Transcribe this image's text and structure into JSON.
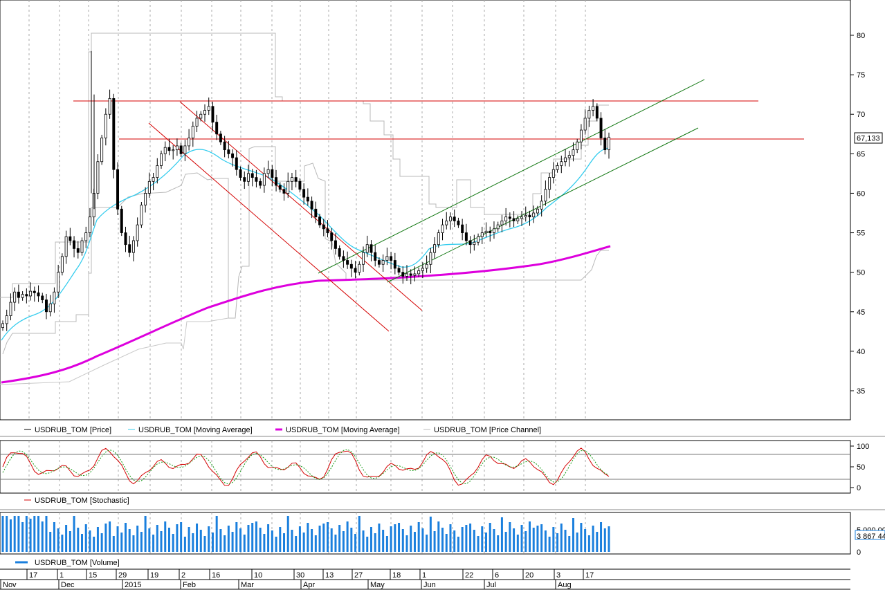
{
  "chart_data": {
    "type": "candlestick",
    "instrument": "USDRUB_TOM",
    "price_axis": {
      "ticks": [
        35,
        40,
        45,
        50,
        55,
        60,
        65,
        70,
        75,
        80
      ],
      "current_value_label": "67,133",
      "ylim": [
        31,
        84
      ]
    },
    "legend_price": [
      {
        "name": "USDRUB_TOM [Price]",
        "color": "#000000"
      },
      {
        "name": "USDRUB_TOM [Moving Average]",
        "color": "#33ccee"
      },
      {
        "name": "USDRUB_TOM [Moving Average]",
        "color": "#dd00dd"
      },
      {
        "name": "USDRUB_TOM [Price Channel]",
        "color": "#bbbbbb"
      }
    ],
    "horizontal_levels": [
      71.7,
      66.8
    ],
    "stochastic": {
      "legend": "USDRUB_TOM [Stochastic]",
      "ticks": [
        0,
        50,
        100
      ],
      "levels": [
        20,
        80
      ]
    },
    "volume": {
      "legend": "USDRUB_TOM [Volume]",
      "ticks": [
        "0",
        "5 000 00",
        "3 867 44"
      ]
    },
    "date_axis": {
      "days": [
        "17",
        "1",
        "15",
        "29",
        "19",
        "2",
        "16",
        "10",
        "30",
        "13",
        "27",
        "18",
        "1",
        "22",
        "6",
        "20",
        "3",
        "17"
      ],
      "months": [
        "Nov",
        "Dec",
        "2015",
        "Feb",
        "Mar",
        "Apr",
        "May",
        "Jun",
        "Jul",
        "Aug"
      ]
    },
    "closes": [
      43.5,
      44.5,
      46.2,
      47.5,
      46.8,
      47.2,
      47.0,
      47.6,
      47.4,
      47.0,
      46.5,
      45.0,
      46.0,
      47.5,
      50.0,
      52.0,
      54.5,
      54.0,
      53.0,
      52.5,
      54.0,
      55.0,
      57.0,
      60.0,
      64.0,
      67.0,
      70.0,
      72.0,
      63.0,
      58.0,
      55.0,
      53.5,
      52.5,
      54.0,
      56.0,
      58.5,
      60.0,
      61.5,
      62.0,
      63.5,
      65.0,
      65.8,
      65.4,
      65.5,
      66.0,
      65.0,
      66.0,
      67.0,
      68.5,
      69.5,
      70.0,
      70.5,
      71.0,
      69.0,
      67.5,
      66.5,
      65.5,
      65.0,
      64.5,
      63.0,
      62.0,
      61.5,
      62.5,
      62.0,
      61.5,
      61.0,
      62.5,
      63.0,
      62.0,
      61.0,
      60.5,
      60.0,
      61.5,
      62.0,
      61.5,
      60.5,
      59.5,
      59.0,
      58.0,
      57.0,
      56.0,
      55.5,
      55.0,
      54.0,
      53.0,
      52.0,
      51.5,
      51.0,
      50.5,
      50.0,
      51.0,
      52.5,
      53.5,
      52.5,
      51.5,
      51.0,
      51.5,
      52.0,
      51.5,
      50.5,
      50.0,
      49.5,
      49.8,
      49.6,
      49.8,
      50.2,
      50.5,
      51.0,
      52.5,
      53.5,
      55.0,
      56.0,
      56.5,
      57.0,
      56.5,
      56.0,
      55.0,
      54.0,
      53.5,
      53.8,
      54.5,
      55.0,
      55.2,
      55.0,
      55.5,
      56.0,
      56.5,
      57.0,
      56.8,
      56.5,
      56.8,
      57.0,
      57.2,
      57.0,
      57.5,
      58.0,
      59.0,
      60.5,
      62.0,
      63.0,
      63.5,
      64.0,
      64.5,
      64.8,
      65.5,
      66.5,
      68.0,
      69.5,
      70.5,
      71.0,
      69.5,
      67.0,
      65.5,
      67.1
    ]
  }
}
